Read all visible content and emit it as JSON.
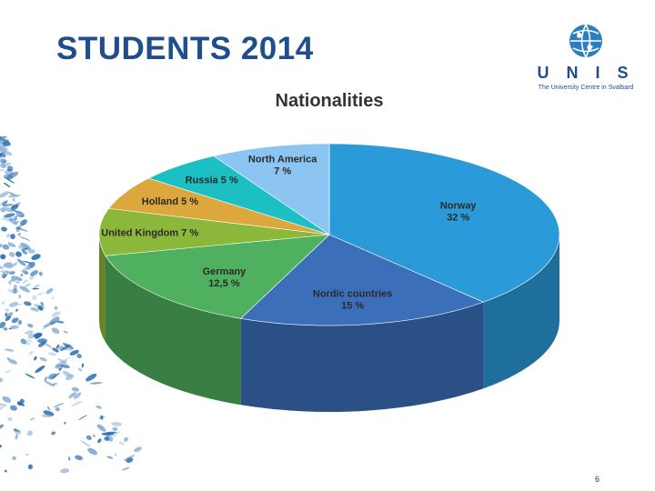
{
  "slide": {
    "title": "STUDENTS 2014",
    "page_number": "6"
  },
  "logo": {
    "name": "U N I S",
    "subtitle": "The University Centre in Svalbard"
  },
  "colors": {
    "title": "#1f4e8c",
    "logo": "#2a7fc0"
  },
  "chart_data": {
    "type": "pie",
    "title": "Nationalities",
    "slices": [
      {
        "label": "Norway",
        "value_label": "32 %",
        "value": 32,
        "color": "#2a9ad8",
        "label_lines": [
          "Norway",
          "32 %"
        ]
      },
      {
        "label": "Nordic countries",
        "value_label": "15 %",
        "value": 15,
        "color": "#3c6fb9",
        "label_lines": [
          "Nordic countries",
          "15 %"
        ]
      },
      {
        "label": "Germany",
        "value_label": "12,5 %",
        "value": 12.5,
        "color": "#4fb05f",
        "label_lines": [
          "Germany",
          "12,5 %"
        ]
      },
      {
        "label": "United Kingdom",
        "value_label": "7 %",
        "value": 7,
        "color": "#8bb83a",
        "label_lines": [
          "United Kingdom 7 %"
        ]
      },
      {
        "label": "Holland",
        "value_label": "5 %",
        "value": 5,
        "color": "#dca73c",
        "label_lines": [
          "Holland 5 %"
        ]
      },
      {
        "label": "Russia",
        "value_label": "5 %",
        "value": 5,
        "color": "#1cc0c4",
        "label_lines": [
          "Russia 5 %"
        ]
      },
      {
        "label": "North America",
        "value_label": "7 %",
        "value": 7,
        "color": "#8cc4f2",
        "label_lines": [
          "North America",
          "7 %"
        ]
      }
    ]
  }
}
